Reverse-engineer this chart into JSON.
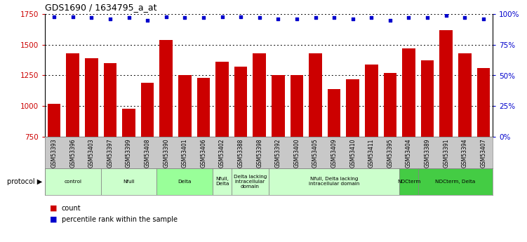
{
  "title": "GDS1690 / 1634795_a_at",
  "samples": [
    "GSM53393",
    "GSM53396",
    "GSM53403",
    "GSM53397",
    "GSM53399",
    "GSM53408",
    "GSM53390",
    "GSM53401",
    "GSM53406",
    "GSM53402",
    "GSM53388",
    "GSM53398",
    "GSM53392",
    "GSM53400",
    "GSM53405",
    "GSM53409",
    "GSM53410",
    "GSM53411",
    "GSM53395",
    "GSM53404",
    "GSM53389",
    "GSM53391",
    "GSM53394",
    "GSM53407"
  ],
  "counts": [
    1020,
    1430,
    1390,
    1350,
    980,
    1190,
    1540,
    1250,
    1230,
    1360,
    1320,
    1430,
    1250,
    1250,
    1430,
    1140,
    1220,
    1340,
    1270,
    1470,
    1370,
    1620,
    1430,
    1310
  ],
  "percentiles": [
    98,
    98,
    97,
    96,
    97,
    95,
    98,
    97,
    97,
    98,
    98,
    97,
    96,
    96,
    97,
    97,
    96,
    97,
    95,
    97,
    97,
    99,
    97,
    96
  ],
  "bar_color": "#cc0000",
  "dot_color": "#0000cc",
  "ylim_left": [
    750,
    1750
  ],
  "ylim_right": [
    0,
    100
  ],
  "yticks_left": [
    750,
    1000,
    1250,
    1500,
    1750
  ],
  "yticks_right": [
    0,
    25,
    50,
    75,
    100
  ],
  "protocols": [
    {
      "label": "control",
      "start": 0,
      "end": 3,
      "color": "#ccffcc"
    },
    {
      "label": "Nfull",
      "start": 3,
      "end": 6,
      "color": "#ccffcc"
    },
    {
      "label": "Delta",
      "start": 6,
      "end": 9,
      "color": "#99ff99"
    },
    {
      "label": "Nfull,\nDelta",
      "start": 9,
      "end": 10,
      "color": "#ccffcc"
    },
    {
      "label": "Delta lacking\nintracellular\ndomain",
      "start": 10,
      "end": 12,
      "color": "#ccffcc"
    },
    {
      "label": "Nfull, Delta lacking\nintracellular domain",
      "start": 12,
      "end": 19,
      "color": "#ccffcc"
    },
    {
      "label": "NDCterm",
      "start": 19,
      "end": 20,
      "color": "#44cc44"
    },
    {
      "label": "NDCterm, Delta",
      "start": 20,
      "end": 24,
      "color": "#44cc44"
    }
  ],
  "bar_color_left": "#cc0000",
  "dot_color_blue": "#0000cc",
  "tick_color_left": "#cc0000",
  "tick_color_right": "#0000cc",
  "sample_bg": "#c8c8c8",
  "plot_bg": "#ffffff"
}
